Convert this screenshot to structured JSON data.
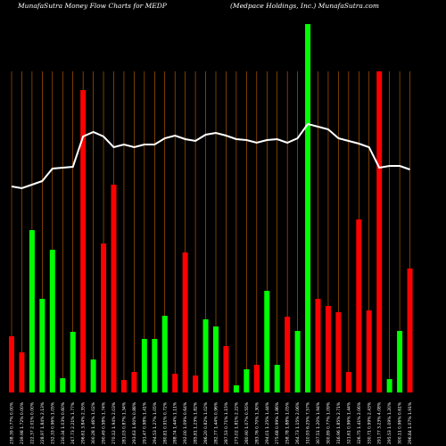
{
  "chart_data": {
    "type": "bar",
    "title": "MunafaSutra  Money Flow  Charts for MEDP",
    "subtitle": "(Medpace   Holdings, Inc.) MunafaSutra.com",
    "categories": [
      "238.39 0.77% 0.00%",
      "239.98 1.72% 0.00%",
      "222.37 2.01% 0.00%",
      "228.97 1.84% 2.13%",
      "232.33 0.96% 1.05%",
      "230.34 1.03% 0.60%",
      "247.73 2.21% 1.77%",
      "296.61 3.84% 2.35%",
      "300.28 1.46% 1.02%",
      "290.49 0.58% 1.74%",
      "270.12 1.94% 2.03%",
      "281.03 0.87% 1.34%",
      "293.63 1.60% 0.88%",
      "291.47 0.98% 1.41%",
      "294.53 1.27% 1.05%",
      "280.81 0.91% 0.72%",
      "288.74 1.44% 1.11%",
      "292.00 1.09% 0.64%",
      "285.81 1.23% 1.82%",
      "286.20 0.82% 1.02%",
      "282.77 1.44% 0.96%",
      "287.53 0.71% 1.15%",
      "273.02 1.81% 2.22%",
      "280.90 1.07% 0.55%",
      "283.76 0.70% 1.30%",
      "294.01 1.25% 1.44%",
      "275.68 0.99% 1.86%",
      "258.78 1.88% 1.05%",
      "264.73 1.15% 2.06%",
      "310.93 6.25% 7.57%",
      "307.51 1.20% 1.94%",
      "300.89 0.77% 1.09%",
      "316.96 1.85% 2.71%",
      "321.61 0.96% 1.44%",
      "326.75 1.41% 2.06%",
      "330.71 0.99% 2.43%",
      "291.77 3.23% 4.08%",
      "295.53 1.09% 1.20%",
      "300.11 0.96% 0.61%",
      "296.84 1.07% 1.91%"
    ],
    "series": [
      {
        "name": "Money flow",
        "values": [
          63,
          45,
          182,
          105,
          160,
          16,
          68,
          339,
          37,
          167,
          233,
          14,
          23,
          60,
          60,
          86,
          21,
          157,
          19,
          82,
          74,
          52,
          8,
          26,
          31,
          114,
          31,
          85,
          69,
          413,
          105,
          97,
          90,
          23,
          194,
          92,
          360,
          15,
          69,
          139
        ],
        "colors": [
          "#ff0000",
          "#ff0000",
          "#00ff00",
          "#00ff00",
          "#00ff00",
          "#00ff00",
          "#00ff00",
          "#ff0000",
          "#00ff00",
          "#ff0000",
          "#ff0000",
          "#ff0000",
          "#ff0000",
          "#00ff00",
          "#00ff00",
          "#00ff00",
          "#ff0000",
          "#ff0000",
          "#ff0000",
          "#00ff00",
          "#00ff00",
          "#ff0000",
          "#00ff00",
          "#00ff00",
          "#ff0000",
          "#00ff00",
          "#00ff00",
          "#ff0000",
          "#00ff00",
          "#00ff00",
          "#ff0000",
          "#ff0000",
          "#ff0000",
          "#ff0000",
          "#ff0000",
          "#ff0000",
          "#ff0000",
          "#00ff00",
          "#00ff00",
          "#ff0000"
        ]
      },
      {
        "name": "Price",
        "color": "#ffffff",
        "values": [
          231,
          229,
          233,
          237,
          251,
          252,
          253,
          287,
          292,
          287,
          275,
          278,
          275,
          278,
          278,
          285,
          288,
          284,
          282,
          289,
          291,
          288,
          284,
          283,
          280,
          283,
          284,
          280,
          285,
          301,
          298,
          295,
          285,
          282,
          279,
          275,
          252,
          254,
          254,
          250
        ]
      }
    ],
    "ylim": [
      0,
      440
    ],
    "grid_color": "#cc6600"
  }
}
